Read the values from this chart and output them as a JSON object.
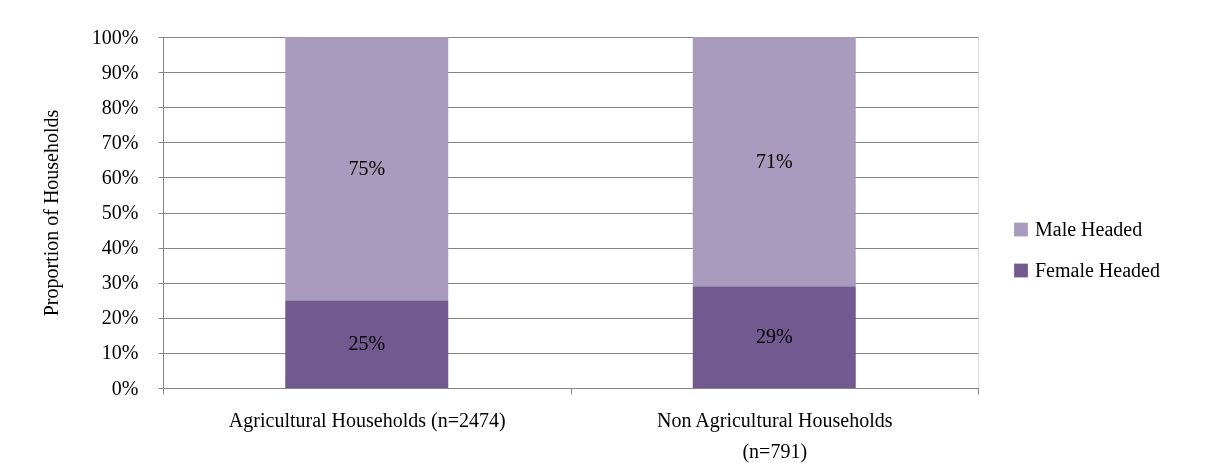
{
  "chart_data": {
    "type": "bar",
    "stacked": true,
    "ylabel": "Proportion of Households",
    "categories": [
      "Agricultural Households (n=2474)",
      "Non Agricultural Households (n=791)"
    ],
    "series": [
      {
        "name": "Female Headed",
        "color": "#725a90",
        "values": [
          25,
          29
        ],
        "value_labels": [
          "25%",
          "29%"
        ]
      },
      {
        "name": "Male Headed",
        "color": "#a99bbd",
        "values": [
          75,
          71
        ],
        "value_labels": [
          "75%",
          "71%"
        ]
      }
    ],
    "ylim": [
      0,
      100
    ],
    "yticks": [
      {
        "value": 0,
        "label": "0%"
      },
      {
        "value": 10,
        "label": "10%"
      },
      {
        "value": 20,
        "label": "20%"
      },
      {
        "value": 30,
        "label": "30%"
      },
      {
        "value": 40,
        "label": "40%"
      },
      {
        "value": 50,
        "label": "50%"
      },
      {
        "value": 60,
        "label": "60%"
      },
      {
        "value": 70,
        "label": "70%"
      },
      {
        "value": 80,
        "label": "80%"
      },
      {
        "value": 90,
        "label": "90%"
      },
      {
        "value": 100,
        "label": "100%"
      }
    ],
    "grid": "y",
    "legend": "right"
  }
}
